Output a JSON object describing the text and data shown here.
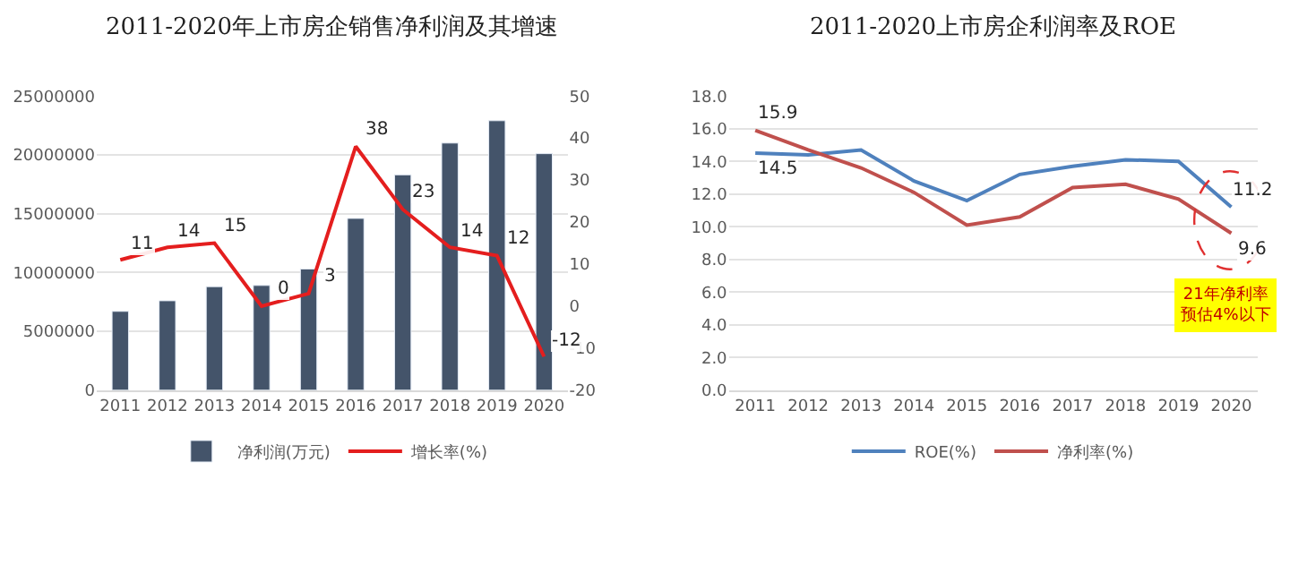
{
  "chart_data": [
    {
      "type": "bar",
      "title": "2011-2020年上市房企销售净利润及其增速",
      "categories": [
        "2011",
        "2012",
        "2013",
        "2014",
        "2015",
        "2016",
        "2017",
        "2018",
        "2019",
        "2020"
      ],
      "series": [
        {
          "name": "净利润(万元)",
          "type": "bar",
          "color": "#44546a",
          "values": [
            6700000,
            7600000,
            8800000,
            8900000,
            10300000,
            14600000,
            18300000,
            21000000,
            22900000,
            20100000
          ]
        },
        {
          "name": "增长率(%)",
          "type": "line",
          "axis": "y2",
          "color": "#e41e1e",
          "values": [
            11,
            14,
            15,
            0,
            3,
            38,
            23,
            14,
            12,
            -12
          ],
          "value_labels": [
            "11",
            "14",
            "15",
            "0",
            "3",
            "38",
            "23",
            "14",
            "12",
            "-12"
          ]
        }
      ],
      "ylim": [
        0,
        25000000
      ],
      "yticks": [
        0,
        5000000,
        10000000,
        15000000,
        20000000,
        25000000
      ],
      "y2lim": [
        -20,
        50
      ],
      "y2ticks": [
        -20,
        -10,
        0,
        10,
        20,
        30,
        40,
        50
      ],
      "grid": "y",
      "legend": "bottom",
      "marker": "none",
      "line_style": "solid"
    },
    {
      "type": "line",
      "title": "2011-2020上市房企利润率及ROE",
      "categories": [
        "2011",
        "2012",
        "2013",
        "2014",
        "2015",
        "2016",
        "2017",
        "2018",
        "2019",
        "2020"
      ],
      "series": [
        {
          "name": "ROE(%)",
          "color": "#4f81bd",
          "values": [
            14.5,
            14.4,
            14.7,
            12.8,
            11.6,
            13.2,
            13.7,
            14.1,
            14.0,
            11.2
          ],
          "value_labels": [
            "14.5",
            null,
            null,
            null,
            null,
            null,
            null,
            null,
            null,
            "11.2"
          ]
        },
        {
          "name": "净利率(%)",
          "color": "#c0504d",
          "values": [
            15.9,
            14.7,
            13.6,
            12.1,
            10.1,
            10.6,
            12.4,
            12.6,
            11.7,
            9.6
          ],
          "value_labels": [
            "15.9",
            null,
            null,
            null,
            null,
            null,
            null,
            null,
            null,
            "9.6"
          ]
        }
      ],
      "ylim": [
        0,
        18
      ],
      "yticks": [
        {
          "value": 0,
          "label": "0.0"
        },
        {
          "value": 2,
          "label": "2.0"
        },
        {
          "value": 4,
          "label": "4.0"
        },
        {
          "value": 6,
          "label": "6.0"
        },
        {
          "value": 8,
          "label": "8.0"
        },
        {
          "value": 10,
          "label": "10.0"
        },
        {
          "value": 12,
          "label": "12.0"
        },
        {
          "value": 14,
          "label": "14.0"
        },
        {
          "value": 16,
          "label": "16.0"
        },
        {
          "value": 18,
          "label": "18.0"
        }
      ],
      "annotations": [
        "21年净利率预估4%以下"
      ],
      "grid": "y",
      "legend": "bottom",
      "marker": "none",
      "line_style": "solid"
    }
  ]
}
